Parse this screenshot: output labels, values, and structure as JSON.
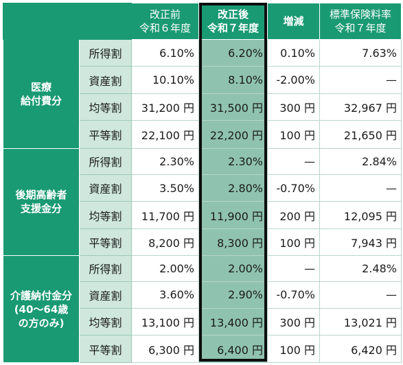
{
  "headers": {
    "before": [
      "改正前",
      "令和６年度"
    ],
    "after": [
      "改正後",
      "令和７年度"
    ],
    "change": "増減",
    "standard": [
      "標準保険料率",
      "令和７年度"
    ]
  },
  "groups": [
    {
      "label": [
        "医療",
        "給付費分"
      ],
      "rows": [
        {
          "item": "所得割",
          "before": "6.10%",
          "after": "6.20%",
          "change": "0.10%",
          "standard": "7.63%"
        },
        {
          "item": "資産割",
          "before": "10.10%",
          "after": "8.10%",
          "change": "-2.00%",
          "standard": "—"
        },
        {
          "item": "均等割",
          "before": "31,200 円",
          "after": "31,500 円",
          "change": "300 円",
          "standard": "32,967 円"
        },
        {
          "item": "平等割",
          "before": "22,100 円",
          "after": "22,200 円",
          "change": "100 円",
          "standard": "21,650 円"
        }
      ]
    },
    {
      "label": [
        "後期高齢者",
        "支援金分"
      ],
      "rows": [
        {
          "item": "所得割",
          "before": "2.30%",
          "after": "2.30%",
          "change": "—",
          "standard": "2.84%"
        },
        {
          "item": "資産割",
          "before": "3.50%",
          "after": "2.80%",
          "change": "-0.70%",
          "standard": "—"
        },
        {
          "item": "均等割",
          "before": "11,700 円",
          "after": "11,900 円",
          "change": "200 円",
          "standard": "12,095 円"
        },
        {
          "item": "平等割",
          "before": "8,200 円",
          "after": "8,300 円",
          "change": "100 円",
          "standard": "7,943 円"
        }
      ]
    },
    {
      "label": [
        "介護納付金分",
        "(40～64歳",
        "の方のみ)"
      ],
      "rows": [
        {
          "item": "所得割",
          "before": "2.00%",
          "after": "2.00%",
          "change": "—",
          "standard": "2.48%"
        },
        {
          "item": "資産割",
          "before": "3.60%",
          "after": "2.90%",
          "change": "-0.70%",
          "standard": "—"
        },
        {
          "item": "均等割",
          "before": "13,100 円",
          "after": "13,400 円",
          "change": "300 円",
          "standard": "13,021 円"
        },
        {
          "item": "平等割",
          "before": "6,300 円",
          "after": "6,400 円",
          "change": "100 円",
          "standard": "6,420 円"
        }
      ]
    }
  ]
}
